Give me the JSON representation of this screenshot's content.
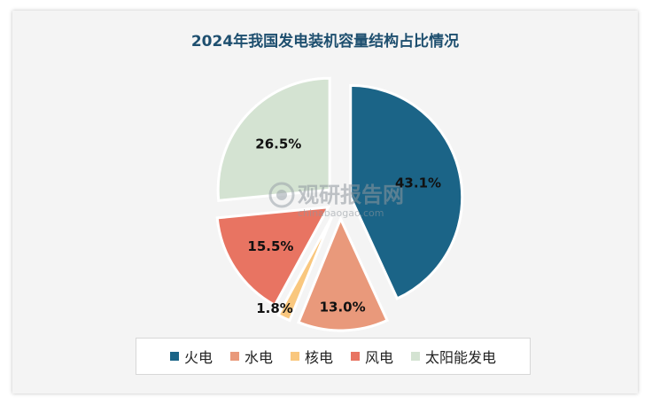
{
  "chart_data": {
    "type": "pie",
    "title": "2024年我国发电装机容量结构占比情况",
    "slices": [
      {
        "name": "火电",
        "value": 43.1,
        "label": "43.1%",
        "color": "#1b6487"
      },
      {
        "name": "水电",
        "value": 13.0,
        "label": "13.0%",
        "color": "#e9997b"
      },
      {
        "name": "核电",
        "value": 1.8,
        "label": "1.8%",
        "color": "#f9c77e"
      },
      {
        "name": "风电",
        "value": 15.5,
        "label": "15.5%",
        "color": "#e87462"
      },
      {
        "name": "太阳能发电",
        "value": 26.5,
        "label": "26.5%",
        "color": "#d4e3d2"
      }
    ],
    "legend_position": "bottom"
  },
  "watermark": {
    "brand": "观研报告网",
    "url": "chinabaogao.com"
  }
}
